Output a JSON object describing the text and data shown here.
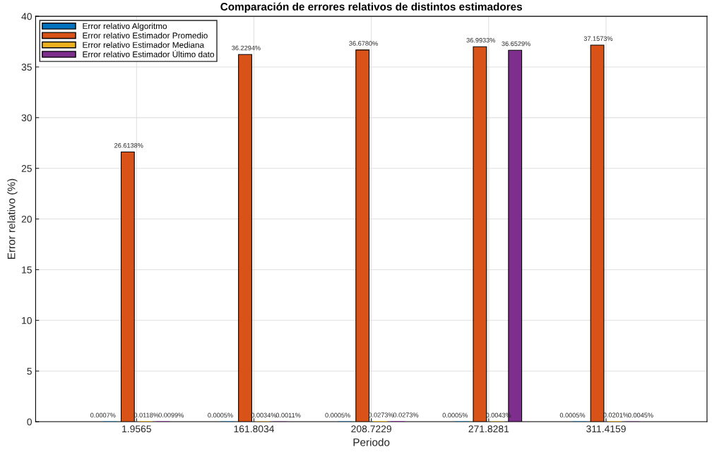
{
  "chart_data": {
    "type": "bar",
    "title": "Comparación de errores relativos de distintos estimadores",
    "xlabel": "Periodo",
    "ylabel": "Error relativo (%)",
    "categories": [
      "1.9565",
      "161.8034",
      "208.7229",
      "271.8281",
      "311.4159"
    ],
    "series": [
      {
        "name": "Error relativo Algoritmo",
        "color": "#0072bd",
        "values": [
          0.0007,
          0.0005,
          0.0005,
          0.0005,
          0.0005
        ],
        "value_labels": [
          "0.0007%",
          "0.0005%",
          "0.0005%",
          "0.0005%",
          "0.0005%"
        ]
      },
      {
        "name": "Error relativo Estimador Promedio",
        "color": "#d95319",
        "values": [
          26.6138,
          36.2294,
          36.678,
          36.9933,
          37.1573
        ],
        "value_labels": [
          "26.6138%",
          "36.2294%",
          "36.6780%",
          "36.9933%",
          "37.1573%"
        ]
      },
      {
        "name": "Error relativo Estimador Mediana",
        "color": "#edb120",
        "values": [
          0.0118,
          0.0034,
          0.0273,
          0.0043,
          0.0201
        ],
        "value_labels": [
          "0.0118%",
          "0.0034%",
          "0.0273%",
          "0.0043%",
          "0.0201%"
        ]
      },
      {
        "name": "Error relativo Estimador Último dato",
        "color": "#7e2f8e",
        "values": [
          0.0099,
          0.0011,
          0.0273,
          36.6529,
          0.0045
        ],
        "value_labels": [
          "0.0099%",
          "0.0011%",
          "0.0273%",
          "36.6529%",
          "0.0045%"
        ]
      }
    ],
    "ylim": [
      0,
      40
    ],
    "yticks": [
      0,
      5,
      10,
      15,
      20,
      25,
      30,
      35,
      40
    ],
    "grid": true,
    "legend": "top left"
  }
}
